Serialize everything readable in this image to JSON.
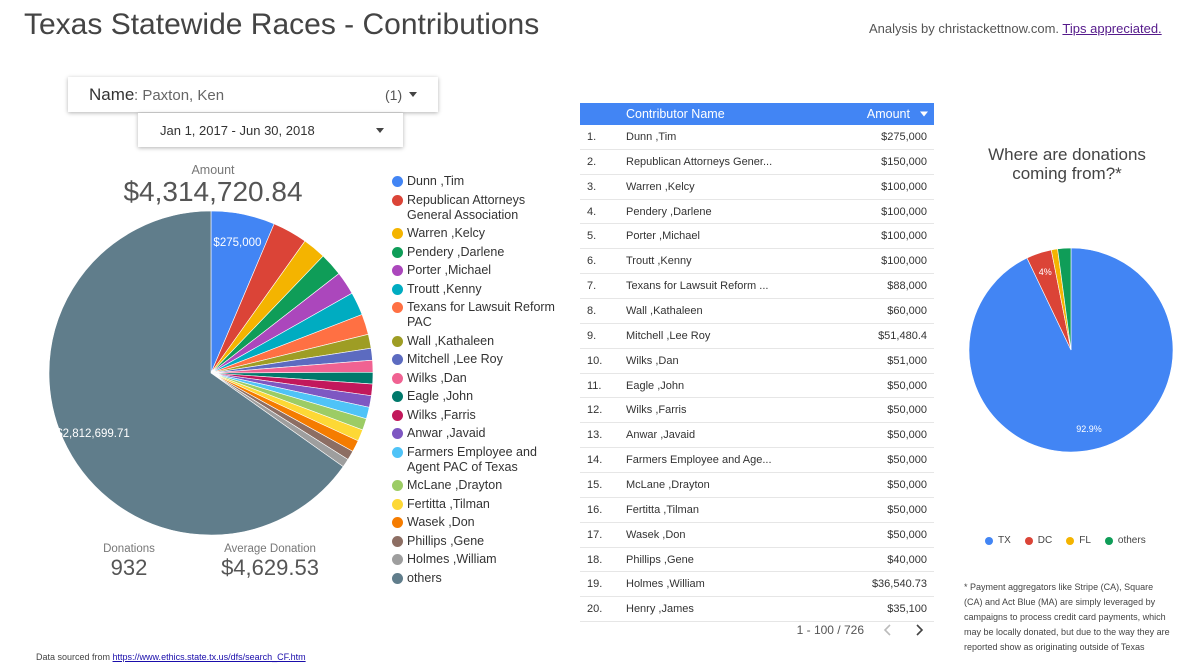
{
  "header": {
    "title": "Texas Statewide Races - Contributions",
    "credit": "Analysis by christackettnow.com.",
    "credit_link": "Tips appreciated."
  },
  "filters": {
    "name_label": "Name",
    "name_value": ": Paxton, Ken",
    "name_count": "(1)",
    "date_range": "Jan 1, 2017 - Jun 30, 2018"
  },
  "scorecards": [
    {
      "label": "Amount",
      "value": "$4,314,720.84"
    },
    {
      "label": "Donations",
      "value": "932"
    },
    {
      "label": "Average Donation",
      "value": "$4,629.53"
    }
  ],
  "chart_data": [
    {
      "type": "pie",
      "categories": [
        "Dunn ,Tim",
        "Republican Attorneys General Association",
        "Warren ,Kelcy",
        "Pendery ,Darlene",
        "Porter ,Michael",
        "Troutt ,Kenny",
        "Texans for Lawsuit Reform PAC",
        "Wall ,Kathaleen",
        "Mitchell ,Lee Roy",
        "Wilks ,Dan",
        "Eagle ,John",
        "Wilks ,Farris",
        "Anwar ,Javaid",
        "Farmers Employee and Agent PAC of Texas",
        "McLane ,Drayton",
        "Fertitta ,Tilman",
        "Wasek ,Don",
        "Phillips ,Gene",
        "Holmes ,William",
        "others"
      ],
      "values": [
        275000,
        150000,
        100000,
        100000,
        100000,
        100000,
        88000,
        60000,
        51480.4,
        51000,
        50000,
        50000,
        50000,
        50000,
        50000,
        50000,
        50000,
        40000,
        36540.73,
        2812699.71
      ],
      "value_labels": [
        "$275,000",
        null,
        null,
        null,
        null,
        null,
        null,
        null,
        null,
        null,
        null,
        null,
        null,
        null,
        null,
        null,
        null,
        null,
        null,
        "$2,812,699.71"
      ],
      "colors": [
        "#4285f4",
        "#db4437",
        "#f4b400",
        "#0f9d58",
        "#ab47bc",
        "#00acc1",
        "#ff7043",
        "#9e9d24",
        "#5c6bc0",
        "#f06292",
        "#00796b",
        "#c2185b",
        "#7e57c2",
        "#4fc3f7",
        "#9ccc65",
        "#fdd835",
        "#f57c00",
        "#8d6e63",
        "#9e9e9e",
        "#607d8b"
      ],
      "legend": "right"
    },
    {
      "type": "pie",
      "title": "Where are donations coming from?*",
      "categories": [
        "TX",
        "DC",
        "FL",
        "others"
      ],
      "values": [
        92.9,
        4,
        1,
        2.1
      ],
      "value_labels": [
        "92.9%",
        "4%",
        null,
        null
      ],
      "colors": [
        "#4285f4",
        "#db4437",
        "#f4b400",
        "#0f9d58"
      ],
      "legend": "bottom"
    }
  ],
  "table": {
    "columns": [
      "Contributor Name",
      "Amount"
    ],
    "rows": [
      [
        "1.",
        "Dunn ,Tim",
        "$275,000"
      ],
      [
        "2.",
        "Republican Attorneys Gener...",
        "$150,000"
      ],
      [
        "3.",
        "Warren ,Kelcy",
        "$100,000"
      ],
      [
        "4.",
        "Pendery ,Darlene",
        "$100,000"
      ],
      [
        "5.",
        "Porter ,Michael",
        "$100,000"
      ],
      [
        "6.",
        "Troutt ,Kenny",
        "$100,000"
      ],
      [
        "7.",
        "Texans for Lawsuit Reform ...",
        "$88,000"
      ],
      [
        "8.",
        "Wall ,Kathaleen",
        "$60,000"
      ],
      [
        "9.",
        "Mitchell ,Lee Roy",
        "$51,480.4"
      ],
      [
        "10.",
        "Wilks ,Dan",
        "$51,000"
      ],
      [
        "11.",
        "Eagle ,John",
        "$50,000"
      ],
      [
        "12.",
        "Wilks ,Farris",
        "$50,000"
      ],
      [
        "13.",
        "Anwar ,Javaid",
        "$50,000"
      ],
      [
        "14.",
        "Farmers Employee and Age...",
        "$50,000"
      ],
      [
        "15.",
        "McLane ,Drayton",
        "$50,000"
      ],
      [
        "16.",
        "Fertitta ,Tilman",
        "$50,000"
      ],
      [
        "17.",
        "Wasek ,Don",
        "$50,000"
      ],
      [
        "18.",
        "Phillips ,Gene",
        "$40,000"
      ],
      [
        "19.",
        "Holmes ,William",
        "$36,540.73"
      ],
      [
        "20.",
        "Henry ,James",
        "$35,100"
      ]
    ],
    "pagination": "1 - 100 / 726"
  },
  "footnote": "* Payment aggregators like Stripe (CA), Square (CA) and Act Blue (MA) are simply leveraged by campaigns to process credit card payments, which may be locally donated, but due to the way they are reported show as originating outside of Texas",
  "source": {
    "text": "Data sourced from",
    "url": "https://www.ethics.state.tx.us/dfs/search_CF.htm"
  }
}
